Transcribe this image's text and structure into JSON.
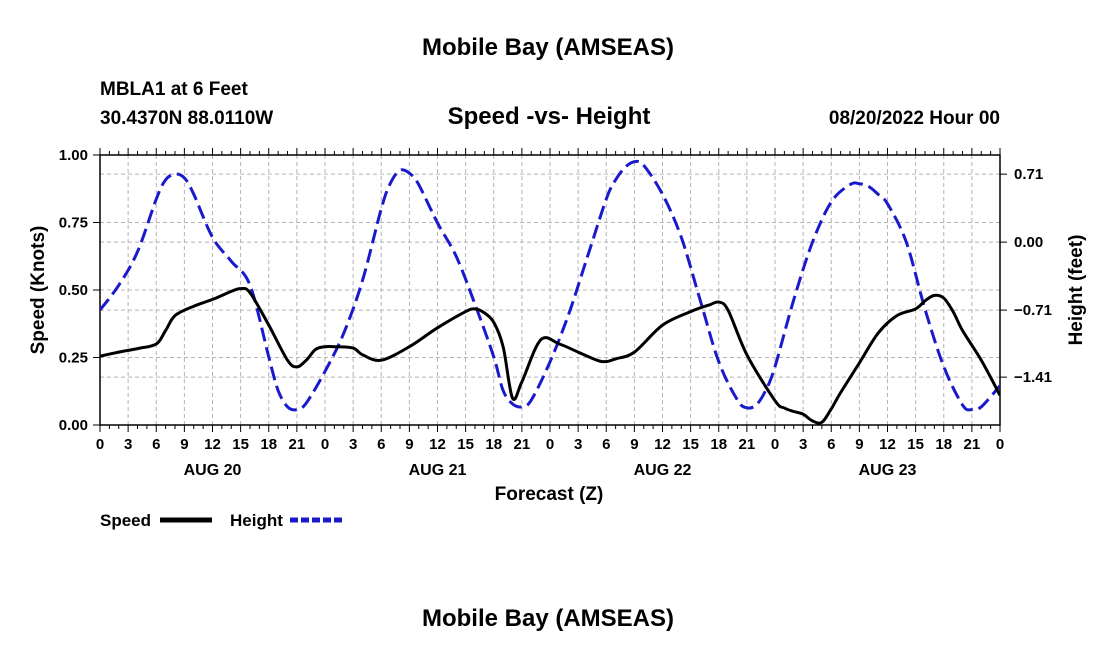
{
  "page": {
    "title_top": "Mobile Bay (AMSEAS)",
    "title_bottom": "Mobile Bay (AMSEAS)",
    "station": "MBLA1 at 6 Feet",
    "coords": "30.4370N  88.0110W",
    "subtitle": "Speed -vs- Height",
    "datetime": "08/20/2022 Hour 00"
  },
  "chart_data": {
    "type": "line",
    "title": "Speed -vs- Height",
    "xlabel": "Forecast (Z)",
    "ylabel": "Speed (Knots)",
    "y2label": "Height (feet)",
    "xlim": [
      0,
      96
    ],
    "ylim": [
      0,
      1.0
    ],
    "y2lim": [
      -1.91,
      0.91
    ],
    "y_ticks": [
      {
        "value": 0.0,
        "label": "0.00"
      },
      {
        "value": 0.25,
        "label": "0.25"
      },
      {
        "value": 0.5,
        "label": "0.50"
      },
      {
        "value": 0.75,
        "label": "0.75"
      },
      {
        "value": 1.0,
        "label": "1.00"
      }
    ],
    "y2_ticks": [
      {
        "value": 0.71,
        "label": "0.71"
      },
      {
        "value": 0.0,
        "label": "0.00"
      },
      {
        "value": -0.71,
        "label": "−0.71"
      },
      {
        "value": -1.41,
        "label": "−1.41"
      }
    ],
    "x_ticks": [
      {
        "value": 0,
        "label": "0"
      },
      {
        "value": 3,
        "label": "3"
      },
      {
        "value": 6,
        "label": "6"
      },
      {
        "value": 9,
        "label": "9"
      },
      {
        "value": 12,
        "label": "12"
      },
      {
        "value": 15,
        "label": "15"
      },
      {
        "value": 18,
        "label": "18"
      },
      {
        "value": 21,
        "label": "21"
      },
      {
        "value": 24,
        "label": "0"
      },
      {
        "value": 27,
        "label": "3"
      },
      {
        "value": 30,
        "label": "6"
      },
      {
        "value": 33,
        "label": "9"
      },
      {
        "value": 36,
        "label": "12"
      },
      {
        "value": 39,
        "label": "15"
      },
      {
        "value": 42,
        "label": "18"
      },
      {
        "value": 45,
        "label": "21"
      },
      {
        "value": 48,
        "label": "0"
      },
      {
        "value": 51,
        "label": "3"
      },
      {
        "value": 54,
        "label": "6"
      },
      {
        "value": 57,
        "label": "9"
      },
      {
        "value": 60,
        "label": "12"
      },
      {
        "value": 63,
        "label": "15"
      },
      {
        "value": 66,
        "label": "18"
      },
      {
        "value": 69,
        "label": "21"
      },
      {
        "value": 72,
        "label": "0"
      },
      {
        "value": 75,
        "label": "3"
      },
      {
        "value": 78,
        "label": "6"
      },
      {
        "value": 81,
        "label": "9"
      },
      {
        "value": 84,
        "label": "12"
      },
      {
        "value": 87,
        "label": "15"
      },
      {
        "value": 90,
        "label": "18"
      },
      {
        "value": 93,
        "label": "21"
      },
      {
        "value": 96,
        "label": "0"
      }
    ],
    "day_labels": [
      {
        "value": 12,
        "label": "AUG 20"
      },
      {
        "value": 36,
        "label": "AUG 21"
      },
      {
        "value": 60,
        "label": "AUG 22"
      },
      {
        "value": 84,
        "label": "AUG 23"
      }
    ],
    "legend": [
      {
        "name": "Speed",
        "color": "#000000",
        "style": "solid"
      },
      {
        "name": "Height",
        "color": "#1a1acc",
        "style": "dashed"
      }
    ],
    "series": [
      {
        "name": "Speed",
        "axis": "left",
        "color": "#000000",
        "x": [
          0,
          2,
          4,
          6,
          7,
          8,
          10,
          12,
          14,
          15,
          16,
          18,
          20,
          21,
          22,
          23,
          24,
          25,
          27,
          28,
          30,
          33,
          36,
          39,
          40,
          41,
          42,
          43,
          44,
          45,
          47,
          49,
          51,
          53,
          54,
          55,
          57,
          60,
          63,
          65,
          66,
          67,
          69,
          72,
          73,
          74,
          75,
          76,
          77,
          78,
          79,
          81,
          83,
          85,
          87,
          88,
          89,
          90,
          91,
          92,
          94,
          96
        ],
        "y": [
          0.255,
          0.27,
          0.283,
          0.3,
          0.35,
          0.405,
          0.44,
          0.465,
          0.495,
          0.505,
          0.49,
          0.37,
          0.24,
          0.215,
          0.24,
          0.28,
          0.29,
          0.29,
          0.285,
          0.26,
          0.24,
          0.29,
          0.36,
          0.42,
          0.43,
          0.415,
          0.38,
          0.29,
          0.1,
          0.16,
          0.315,
          0.3,
          0.27,
          0.24,
          0.235,
          0.245,
          0.27,
          0.37,
          0.42,
          0.445,
          0.455,
          0.425,
          0.26,
          0.09,
          0.063,
          0.05,
          0.04,
          0.015,
          0.01,
          0.06,
          0.12,
          0.23,
          0.34,
          0.405,
          0.43,
          0.46,
          0.48,
          0.47,
          0.42,
          0.35,
          0.24,
          0.11
        ]
      },
      {
        "name": "Height",
        "axis": "right",
        "color": "#1a1acc",
        "x": [
          0,
          2,
          4,
          6,
          7,
          8,
          9,
          10,
          12,
          14,
          16,
          18,
          19,
          20,
          21,
          22,
          24,
          26,
          28,
          30,
          31,
          32,
          33,
          34,
          36,
          38,
          40,
          42,
          43,
          44,
          45,
          46,
          48,
          50,
          52,
          54,
          55,
          56,
          57,
          58,
          60,
          62,
          64,
          66,
          68,
          69,
          70,
          71,
          72,
          74,
          76,
          78,
          80,
          81,
          82,
          83,
          84,
          86,
          88,
          90,
          92,
          93,
          94,
          96
        ],
        "y": [
          -0.71,
          -0.45,
          -0.1,
          0.45,
          0.65,
          0.71,
          0.67,
          0.5,
          0.05,
          -0.2,
          -0.45,
          -1.2,
          -1.55,
          -1.72,
          -1.75,
          -1.68,
          -1.35,
          -0.95,
          -0.4,
          0.35,
          0.62,
          0.75,
          0.72,
          0.6,
          0.2,
          -0.15,
          -0.65,
          -1.2,
          -1.55,
          -1.69,
          -1.72,
          -1.65,
          -1.25,
          -0.75,
          -0.15,
          0.45,
          0.65,
          0.78,
          0.84,
          0.8,
          0.5,
          0.05,
          -0.6,
          -1.25,
          -1.65,
          -1.73,
          -1.7,
          -1.55,
          -1.3,
          -0.6,
          0.0,
          0.42,
          0.6,
          0.61,
          0.58,
          0.5,
          0.4,
          0.0,
          -0.7,
          -1.3,
          -1.7,
          -1.75,
          -1.72,
          -1.5
        ]
      }
    ]
  }
}
